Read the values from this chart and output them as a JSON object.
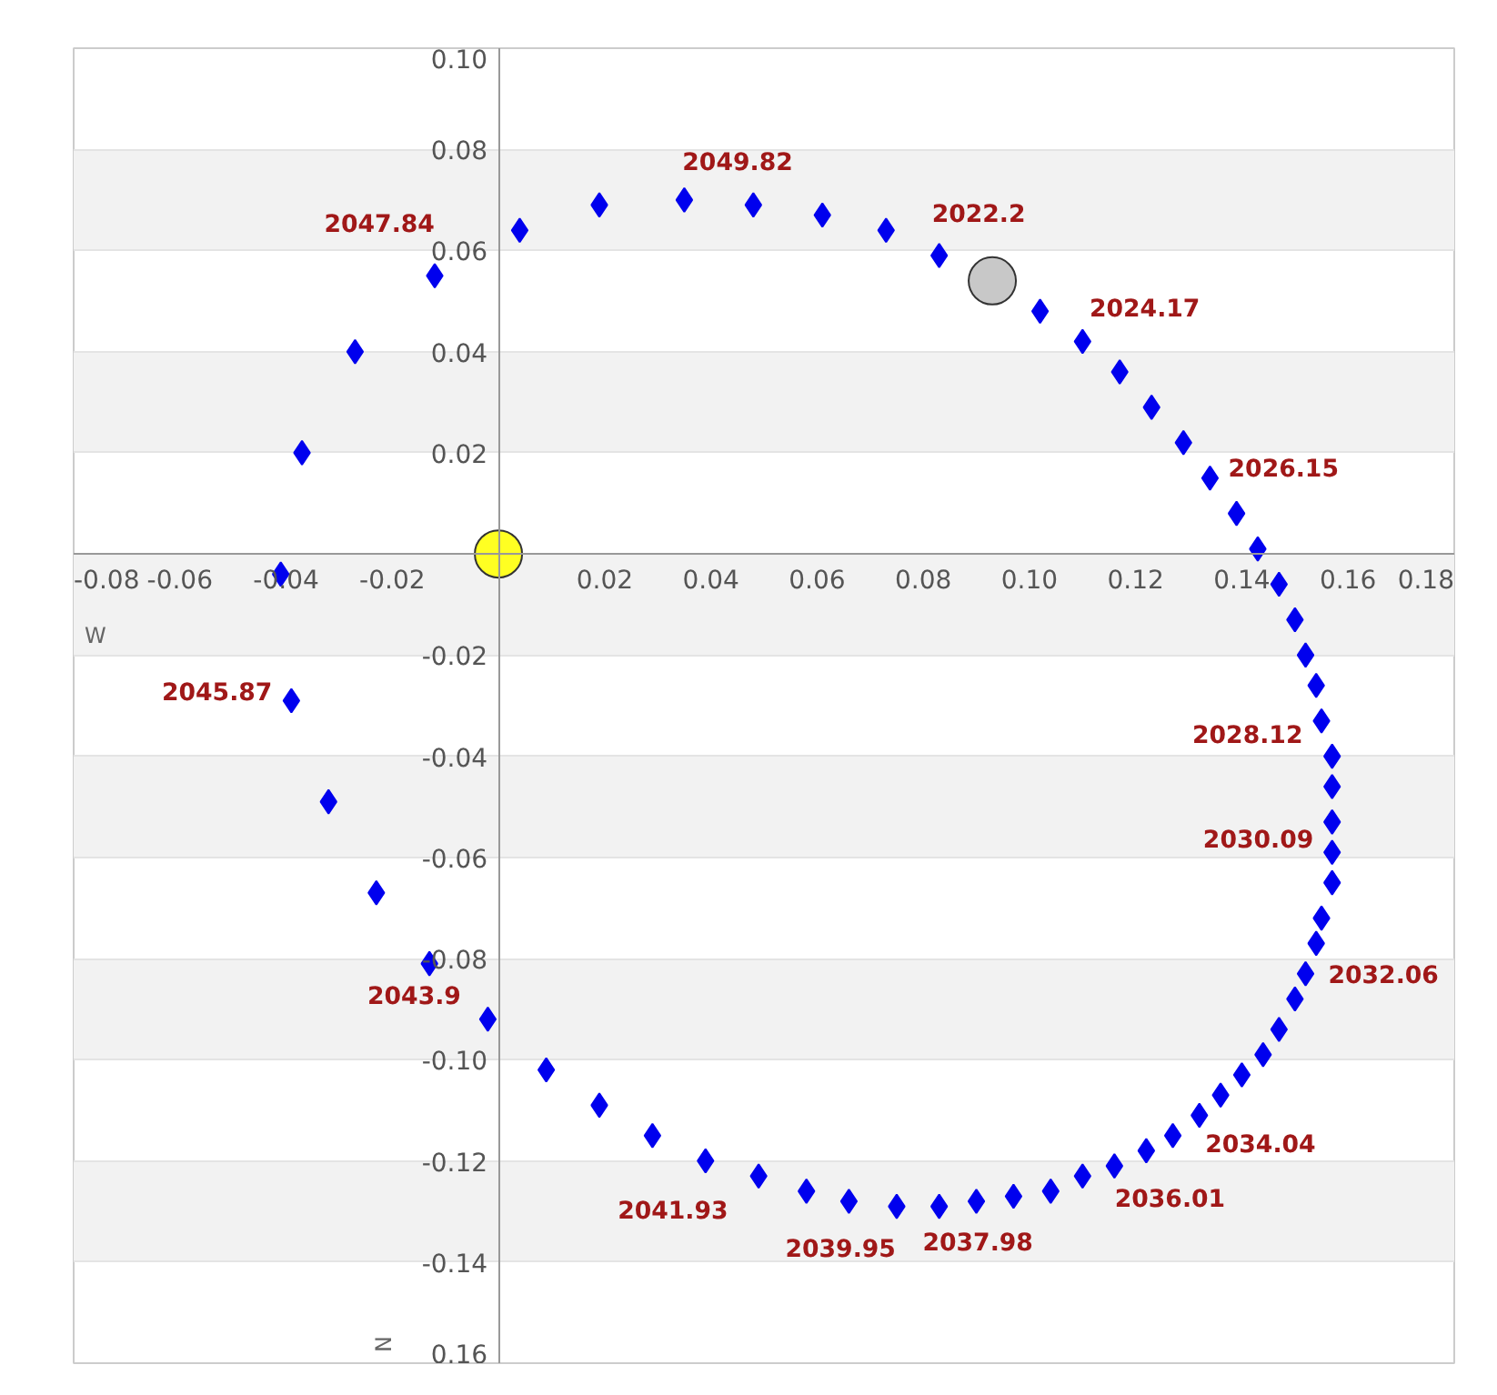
{
  "chart_data": {
    "type": "scatter",
    "xlabel": "W",
    "ylabel": "N",
    "xlim": [
      -0.08,
      0.18
    ],
    "ylim": [
      -0.16,
      0.1
    ],
    "xticks": [
      -0.08,
      -0.06,
      -0.04,
      -0.02,
      0.02,
      0.04,
      0.06,
      0.08,
      {
        "value": 0.1,
        "label": "0.10"
      },
      0.12,
      0.14,
      0.16,
      0.18
    ],
    "yticks": [
      {
        "value": 0.1,
        "label": "0.10"
      },
      0.08,
      0.06,
      0.04,
      0.02,
      -0.02,
      -0.04,
      -0.06,
      -0.08,
      {
        "value": -0.1,
        "label": "-0.10"
      },
      -0.12,
      -0.14,
      {
        "value": -0.16,
        "label": "0.16"
      }
    ],
    "grid": "y",
    "series": [
      {
        "color": "#0000ee",
        "marker": "diamond",
        "x": [
          0.083,
          0.102,
          0.11,
          0.117,
          0.123,
          0.129,
          0.134,
          0.139,
          0.143,
          0.147,
          0.15,
          0.152,
          0.154,
          0.155,
          0.157,
          0.157,
          0.157,
          0.157,
          0.157,
          0.155,
          0.154,
          0.152,
          0.15,
          0.147,
          0.144,
          0.14,
          0.136,
          0.132,
          0.127,
          0.122,
          0.116,
          0.11,
          0.104,
          0.097,
          0.09,
          0.083,
          0.075,
          0.066,
          0.058,
          0.049,
          0.039,
          0.029,
          0.019,
          0.009,
          -0.002,
          -0.013,
          -0.023,
          -0.032,
          -0.039,
          -0.041,
          -0.037,
          -0.027,
          -0.012,
          0.004,
          0.019,
          0.035,
          0.048,
          0.061,
          0.073
        ],
        "values": [
          0.059,
          0.048,
          0.042,
          0.036,
          0.029,
          0.022,
          0.015,
          0.008,
          0.001,
          -0.006,
          -0.013,
          -0.02,
          -0.026,
          -0.033,
          -0.04,
          -0.046,
          -0.053,
          -0.059,
          -0.065,
          -0.072,
          -0.077,
          -0.083,
          -0.088,
          -0.094,
          -0.099,
          -0.103,
          -0.107,
          -0.111,
          -0.115,
          -0.118,
          -0.121,
          -0.123,
          -0.126,
          -0.127,
          -0.128,
          -0.129,
          -0.129,
          -0.128,
          -0.126,
          -0.123,
          -0.12,
          -0.115,
          -0.109,
          -0.102,
          -0.092,
          -0.081,
          -0.067,
          -0.049,
          -0.029,
          -0.004,
          0.02,
          0.04,
          0.055,
          0.064,
          0.069,
          0.07,
          0.069,
          0.067,
          0.064
        ]
      },
      {
        "color": "#ffff22",
        "marker": "circle",
        "x": [
          0
        ],
        "values": [
          0
        ]
      },
      {
        "color": "#c8c8c8",
        "marker": "circle",
        "x": [
          0.093
        ],
        "values": [
          0.054
        ]
      }
    ],
    "annotations": [
      {
        "text": "2049.82",
        "x": 0.048,
        "y": 0.069
      },
      {
        "text": "2047.84",
        "x": -0.012,
        "y": 0.055
      },
      {
        "text": "2022.2",
        "x": 0.083,
        "y": 0.059
      },
      {
        "text": "2024.17",
        "x": 0.117,
        "y": 0.036
      },
      {
        "text": "2026.15",
        "x": 0.139,
        "y": 0.008
      },
      {
        "text": "2028.12",
        "x": 0.155,
        "y": -0.033
      },
      {
        "text": "2030.09",
        "x": 0.157,
        "y": -0.059
      },
      {
        "text": "2032.06",
        "x": 0.154,
        "y": -0.077
      },
      {
        "text": "2034.04",
        "x": 0.136,
        "y": -0.107
      },
      {
        "text": "2036.01",
        "x": 0.122,
        "y": -0.118
      },
      {
        "text": "2037.98",
        "x": 0.09,
        "y": -0.128
      },
      {
        "text": "2039.95",
        "x": 0.075,
        "y": -0.129
      },
      {
        "text": "2041.93",
        "x": 0.039,
        "y": -0.12
      },
      {
        "text": "2043.9",
        "x": -0.002,
        "y": -0.092
      },
      {
        "text": "2045.87",
        "x": -0.039,
        "y": -0.029
      }
    ]
  }
}
